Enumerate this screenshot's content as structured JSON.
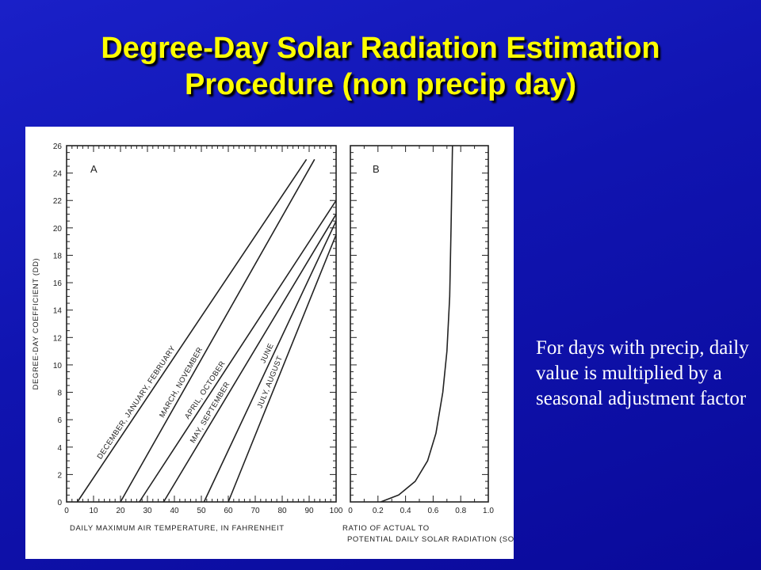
{
  "slide": {
    "title_line1": "Degree-Day Solar Radiation Estimation",
    "title_line2": "Procedure (non precip day)",
    "side_note": "For days with precip, daily value is multiplied by a seasonal adjustment factor",
    "title_color": "#ffff00",
    "background_color": "#1014b0"
  },
  "chart_data": [
    {
      "type": "line",
      "panel_label": "A",
      "xlabel": "DAILY MAXIMUM AIR TEMPERATURE, IN FAHRENHEIT",
      "ylabel": "DEGREE-DAY COEFFICIENT (DD)",
      "xlim": [
        0,
        100
      ],
      "ylim": [
        0,
        26
      ],
      "x_ticks": [
        "0",
        "10",
        "20",
        "30",
        "40",
        "50",
        "60",
        "70",
        "80",
        "90",
        "100"
      ],
      "y_ticks": [
        "0",
        "2",
        "4",
        "6",
        "8",
        "10",
        "12",
        "14",
        "16",
        "18",
        "20",
        "22",
        "24",
        "26"
      ],
      "series": [
        {
          "name": "DECEMBER, JANUARY, FEBRUARY",
          "points": [
            [
              4,
              0
            ],
            [
              89,
              25
            ]
          ]
        },
        {
          "name": "MARCH, NOVEMBER",
          "points": [
            [
              20,
              0
            ],
            [
              92,
              25
            ]
          ]
        },
        {
          "name": "APRIL, OCTOBER",
          "points": [
            [
              27,
              0
            ],
            [
              100,
              22
            ]
          ]
        },
        {
          "name": "MAY, SEPTEMBER",
          "points": [
            [
              36,
              0
            ],
            [
              100,
              21
            ]
          ]
        },
        {
          "name": "JUNE",
          "points": [
            [
              51,
              0
            ],
            [
              100,
              20.5
            ]
          ]
        },
        {
          "name": "JULY, AUGUST",
          "points": [
            [
              60,
              0
            ],
            [
              100,
              19.5
            ]
          ]
        }
      ]
    },
    {
      "type": "line",
      "panel_label": "B",
      "xlabel": "RATIO OF ACTUAL TO POTENTIAL DAILY SOLAR RADIATION (SOLF)",
      "xlim": [
        0,
        1.0
      ],
      "ylim": [
        0,
        26
      ],
      "x_ticks": [
        "0",
        "0.2",
        "0.4",
        "0.6",
        "0.8",
        "1.0"
      ],
      "series": [
        {
          "points": [
            [
              0.22,
              0
            ],
            [
              0.35,
              0.5
            ],
            [
              0.47,
              1.5
            ],
            [
              0.56,
              3
            ],
            [
              0.62,
              5
            ],
            [
              0.67,
              8
            ],
            [
              0.7,
              11
            ],
            [
              0.72,
              15
            ],
            [
              0.73,
              20
            ],
            [
              0.74,
              26
            ]
          ]
        }
      ]
    }
  ]
}
